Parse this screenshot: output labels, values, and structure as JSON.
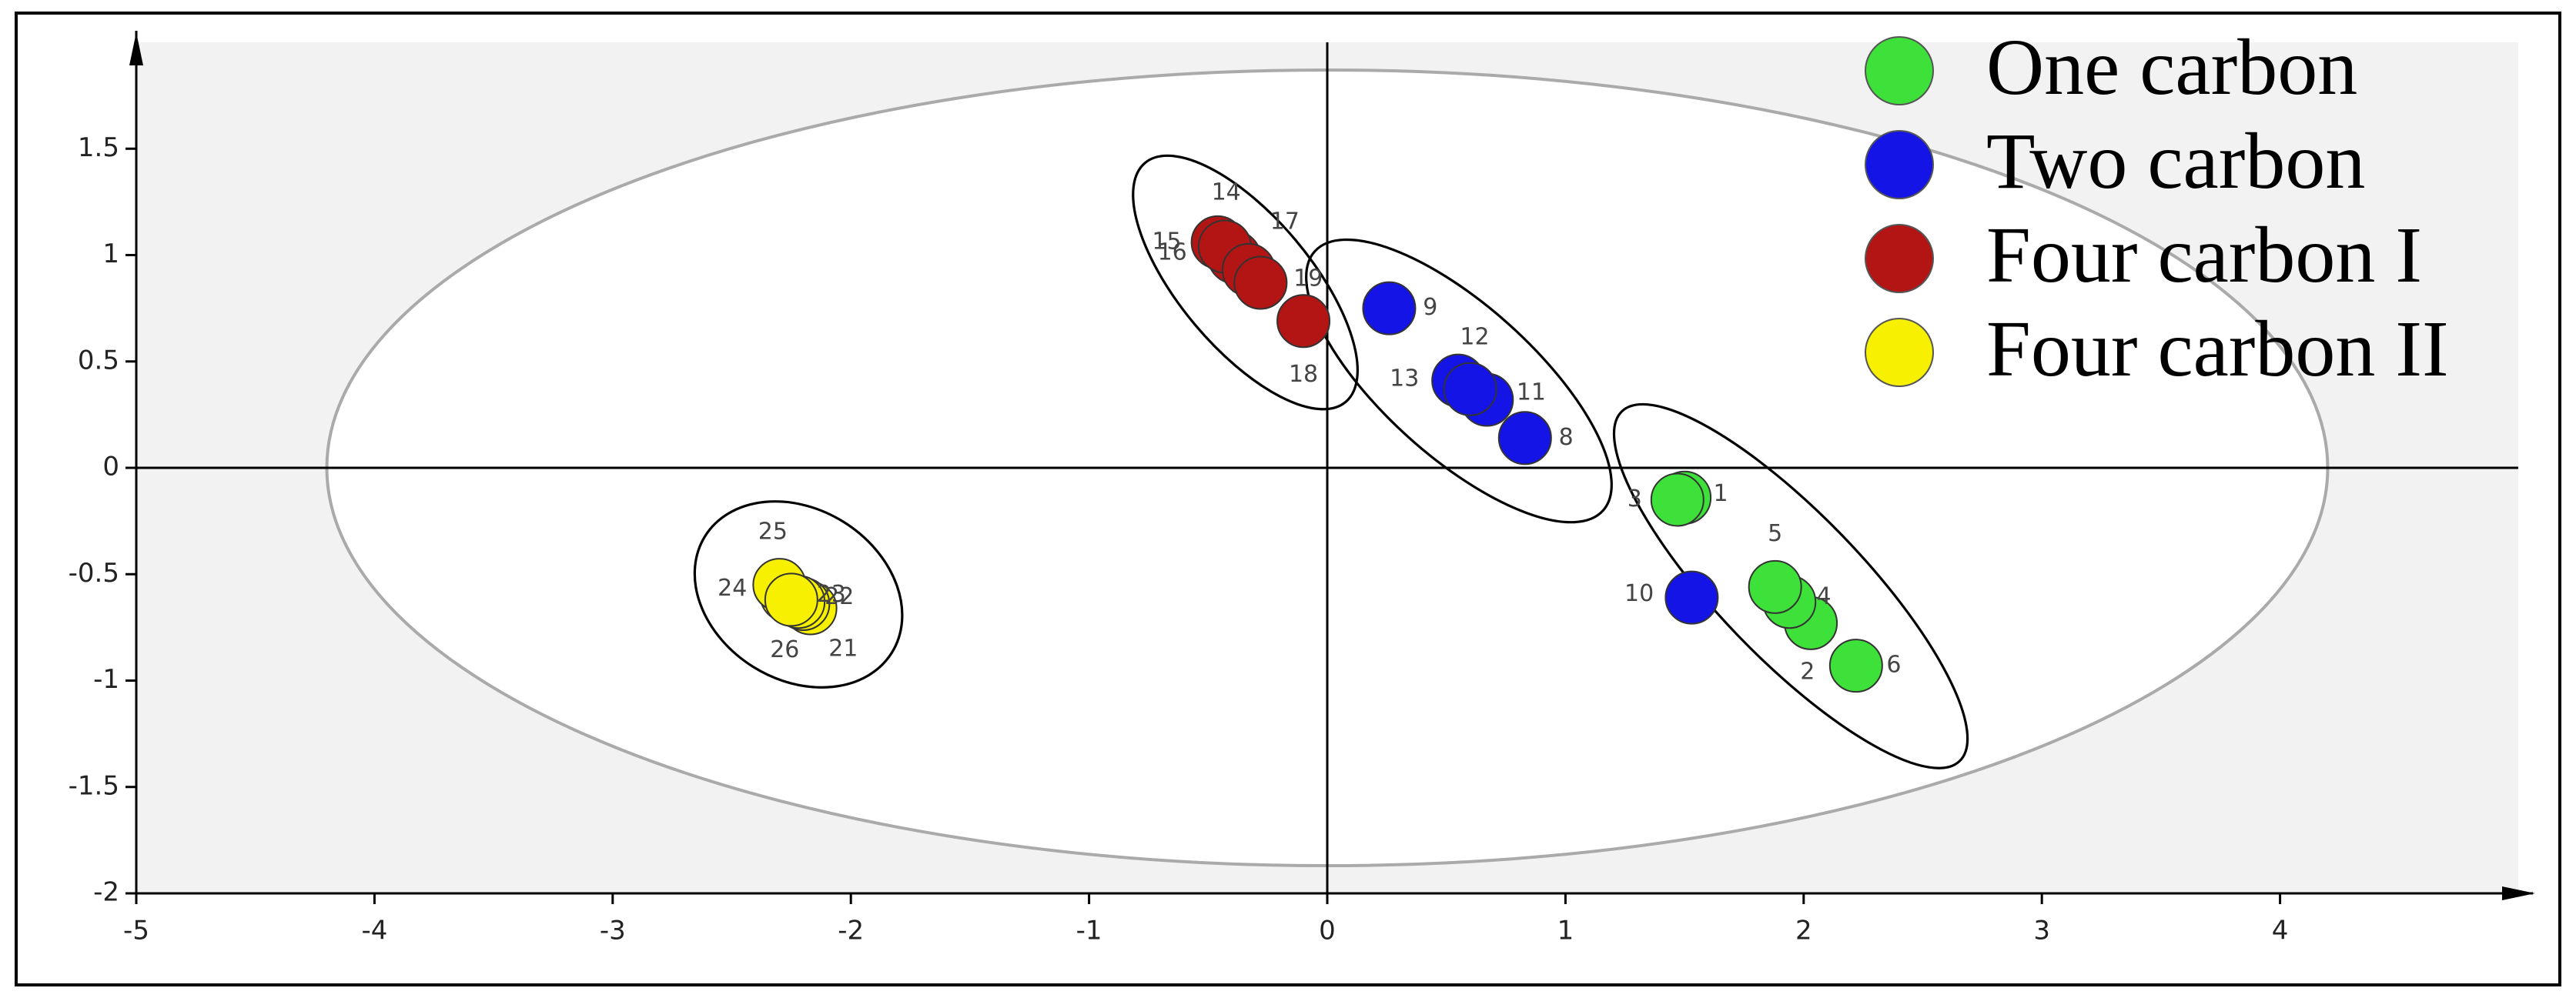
{
  "chart_data": {
    "type": "scatter",
    "xlim": [
      -5,
      5
    ],
    "ylim": [
      -2,
      2
    ],
    "xticks": [
      -5,
      -4,
      -3,
      -2,
      -1,
      0,
      1,
      2,
      3,
      4
    ],
    "yticks": [
      -2,
      -1.5,
      -1,
      -0.5,
      0,
      0.5,
      1,
      1.5
    ],
    "ellipse": {
      "rx": 4.2,
      "ry": 1.87
    },
    "series": [
      {
        "name": "One carbon",
        "color": "#3ee03a",
        "labels": [
          "1",
          "2",
          "3",
          "4",
          "5",
          "6"
        ],
        "x": [
          1.5,
          2.03,
          1.47,
          1.94,
          1.88,
          2.22
        ],
        "values": [
          -0.14,
          -0.73,
          -0.15,
          -0.63,
          -0.56,
          -0.93
        ]
      },
      {
        "name": "Two carbon",
        "color": "#1414e6",
        "labels": [
          "8",
          "9",
          "10",
          "11",
          "12",
          "13"
        ],
        "x": [
          0.83,
          0.26,
          1.53,
          0.67,
          0.55,
          0.6
        ],
        "values": [
          0.14,
          0.75,
          -0.61,
          0.32,
          0.41,
          0.37
        ]
      },
      {
        "name": "Four carbon I",
        "color": "#b31414",
        "labels": [
          "14",
          "15",
          "16",
          "17",
          "18",
          "19"
        ],
        "x": [
          -0.39,
          -0.46,
          -0.43,
          -0.33,
          -0.1,
          -0.28
        ],
        "values": [
          0.99,
          1.06,
          1.04,
          0.93,
          0.69,
          0.87
        ]
      },
      {
        "name": "Four carbon II",
        "color": "#f7f000",
        "labels": [
          "21",
          "22",
          "23",
          "24",
          "25",
          "26"
        ],
        "x": [
          -2.17,
          -2.2,
          -2.22,
          -2.27,
          -2.3,
          -2.25
        ],
        "values": [
          -0.66,
          -0.64,
          -0.63,
          -0.6,
          -0.55,
          -0.62
        ]
      }
    ]
  }
}
